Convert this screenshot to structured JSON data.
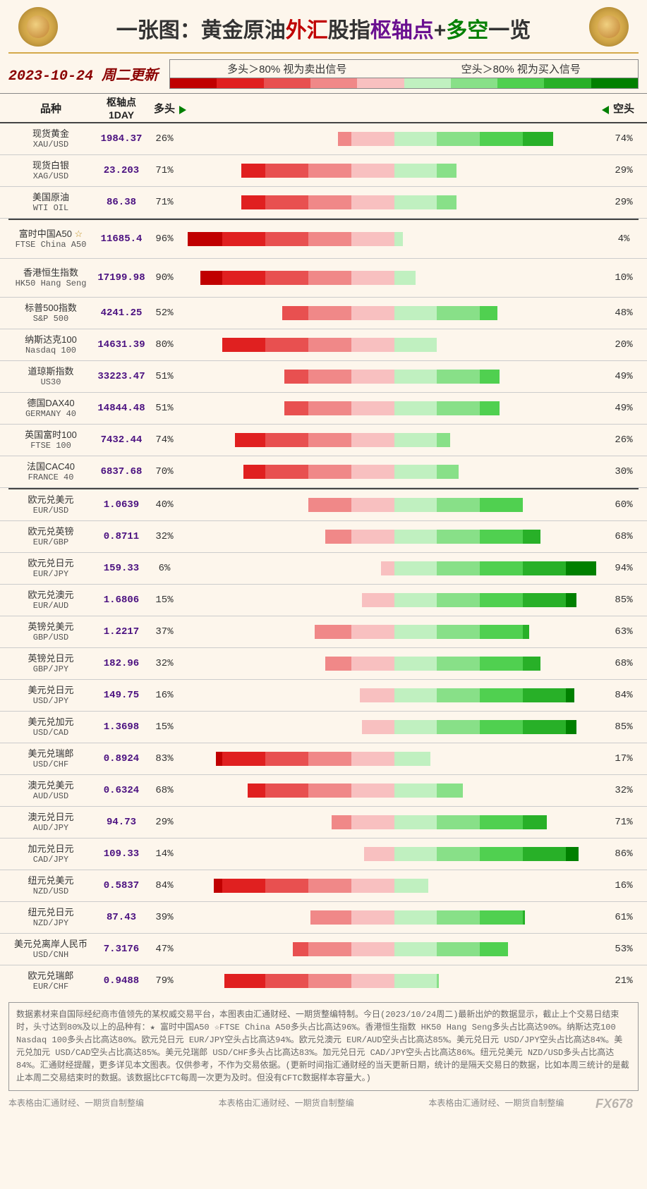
{
  "title": {
    "prefix": "一张图：",
    "seg_black1": "黄金原油",
    "seg_red": "外汇",
    "seg_black2": "股指",
    "seg_purple": "枢轴点",
    "seg_plus": "+",
    "seg_green": "多空",
    "seg_black3": "一览"
  },
  "date_label": "2023-10-24 周二更新",
  "legend": {
    "long_text": "多头＞80% 视为卖出信号",
    "short_text": "空头＞80% 视为买入信号",
    "red_colors": [
      "#c00000",
      "#e02020",
      "#e85050",
      "#f08888",
      "#f8c0c0"
    ],
    "green_colors": [
      "#c0f0c0",
      "#88e088",
      "#50d050",
      "#28b028",
      "#008000"
    ]
  },
  "columns": {
    "name": "品种",
    "pivot": "枢轴点\n1DAY",
    "long": "多头",
    "short": "空头"
  },
  "chart_half_width_pct": 50,
  "groups": [
    {
      "rows": [
        {
          "name_cn": "现货黄金",
          "name_en": "XAU/USD",
          "pivot": "1984.37",
          "long": 26,
          "short": 74,
          "star": false
        },
        {
          "name_cn": "现货白银",
          "name_en": "XAG/USD",
          "pivot": "23.203",
          "long": 71,
          "short": 29,
          "star": false
        },
        {
          "name_cn": "美国原油",
          "name_en": "WTI OIL",
          "pivot": "86.38",
          "long": 71,
          "short": 29,
          "star": false
        }
      ]
    },
    {
      "rows": [
        {
          "name_cn": "富时中国A50",
          "name_en": "FTSE China A50",
          "pivot": "11685.4",
          "long": 96,
          "short": 4,
          "star": true,
          "tall": true
        },
        {
          "name_cn": "香港恒生指数",
          "name_en": "HK50 Hang Seng",
          "pivot": "17199.98",
          "long": 90,
          "short": 10,
          "star": false,
          "tall": true
        },
        {
          "name_cn": "标普500指数",
          "name_en": "S&P 500",
          "pivot": "4241.25",
          "long": 52,
          "short": 48,
          "star": false
        },
        {
          "name_cn": "纳斯达克100",
          "name_en": "Nasdaq 100",
          "pivot": "14631.39",
          "long": 80,
          "short": 20,
          "star": false
        },
        {
          "name_cn": "道琼斯指数",
          "name_en": "US30",
          "pivot": "33223.47",
          "long": 51,
          "short": 49,
          "star": false
        },
        {
          "name_cn": "德国DAX40",
          "name_en": "GERMANY 40",
          "pivot": "14844.48",
          "long": 51,
          "short": 49,
          "star": false
        },
        {
          "name_cn": "英国富时100",
          "name_en": "FTSE 100",
          "pivot": "7432.44",
          "long": 74,
          "short": 26,
          "star": false
        },
        {
          "name_cn": "法国CAC40",
          "name_en": "FRANCE 40",
          "pivot": "6837.68",
          "long": 70,
          "short": 30,
          "star": false
        }
      ]
    },
    {
      "rows": [
        {
          "name_cn": "欧元兑美元",
          "name_en": "EUR/USD",
          "pivot": "1.0639",
          "long": 40,
          "short": 60,
          "star": false
        },
        {
          "name_cn": "欧元兑英镑",
          "name_en": "EUR/GBP",
          "pivot": "0.8711",
          "long": 32,
          "short": 68,
          "star": false
        },
        {
          "name_cn": "欧元兑日元",
          "name_en": "EUR/JPY",
          "pivot": "159.33",
          "long": 6,
          "short": 94,
          "star": false
        },
        {
          "name_cn": "欧元兑澳元",
          "name_en": "EUR/AUD",
          "pivot": "1.6806",
          "long": 15,
          "short": 85,
          "star": false
        },
        {
          "name_cn": "英镑兑美元",
          "name_en": "GBP/USD",
          "pivot": "1.2217",
          "long": 37,
          "short": 63,
          "star": false
        },
        {
          "name_cn": "英镑兑日元",
          "name_en": "GBP/JPY",
          "pivot": "182.96",
          "long": 32,
          "short": 68,
          "star": false
        },
        {
          "name_cn": "美元兑日元",
          "name_en": "USD/JPY",
          "pivot": "149.75",
          "long": 16,
          "short": 84,
          "star": false
        },
        {
          "name_cn": "美元兑加元",
          "name_en": "USD/CAD",
          "pivot": "1.3698",
          "long": 15,
          "short": 85,
          "star": false
        },
        {
          "name_cn": "美元兑瑞郎",
          "name_en": "USD/CHF",
          "pivot": "0.8924",
          "long": 83,
          "short": 17,
          "star": false
        },
        {
          "name_cn": "澳元兑美元",
          "name_en": "AUD/USD",
          "pivot": "0.6324",
          "long": 68,
          "short": 32,
          "star": false
        },
        {
          "name_cn": "澳元兑日元",
          "name_en": "AUD/JPY",
          "pivot": "94.73",
          "long": 29,
          "short": 71,
          "star": false
        },
        {
          "name_cn": "加元兑日元",
          "name_en": "CAD/JPY",
          "pivot": "109.33",
          "long": 14,
          "short": 86,
          "star": false
        },
        {
          "name_cn": "纽元兑美元",
          "name_en": "NZD/USD",
          "pivot": "0.5837",
          "long": 84,
          "short": 16,
          "star": false
        },
        {
          "name_cn": "纽元兑日元",
          "name_en": "NZD/JPY",
          "pivot": "87.43",
          "long": 39,
          "short": 61,
          "star": false
        },
        {
          "name_cn": "美元兑离岸人民币",
          "name_en": "USD/CNH",
          "pivot": "7.3176",
          "long": 47,
          "short": 53,
          "star": false
        },
        {
          "name_cn": "欧元兑瑞郎",
          "name_en": "EUR/CHF",
          "pivot": "0.9488",
          "long": 79,
          "short": 21,
          "star": false
        }
      ]
    }
  ],
  "footer_text": "数据素材来自国际经纪商市值领先的某权威交易平台，本图表由汇通财经、一期货整编特制。今日(2023/10/24周二)最新出炉的数据显示，截止上个交易日结束时，头寸达到80%及以上的品种有：★ 富时中国A50 ☆FTSE China A50多头占比高达96%。香港恒生指数 HK50 Hang Seng多头占比高达90%。纳斯达克100 Nasdaq 100多头占比高达80%。欧元兑日元 EUR/JPY空头占比高达94%。欧元兑澳元 EUR/AUD空头占比高达85%。美元兑日元 USD/JPY空头占比高达84%。美元兑加元 USD/CAD空头占比高达85%。美元兑瑞郎 USD/CHF多头占比高达83%。加元兑日元 CAD/JPY空头占比高达86%。纽元兑美元 NZD/USD多头占比高达84%。汇通财经提醒，更多详见本文图表。仅供参考，不作为交易依据。(更新时间指汇通财经的当天更新日期，统计的是隔天交易日的数据，比如本周三统计的是截止本周二交易结束时的数据。该数据比CFTC每周一次更为及时。但没有CFTC数据样本容量大。)",
  "credit_line": "本表格由汇通财经、一期货自制整编",
  "watermark": "FX678"
}
